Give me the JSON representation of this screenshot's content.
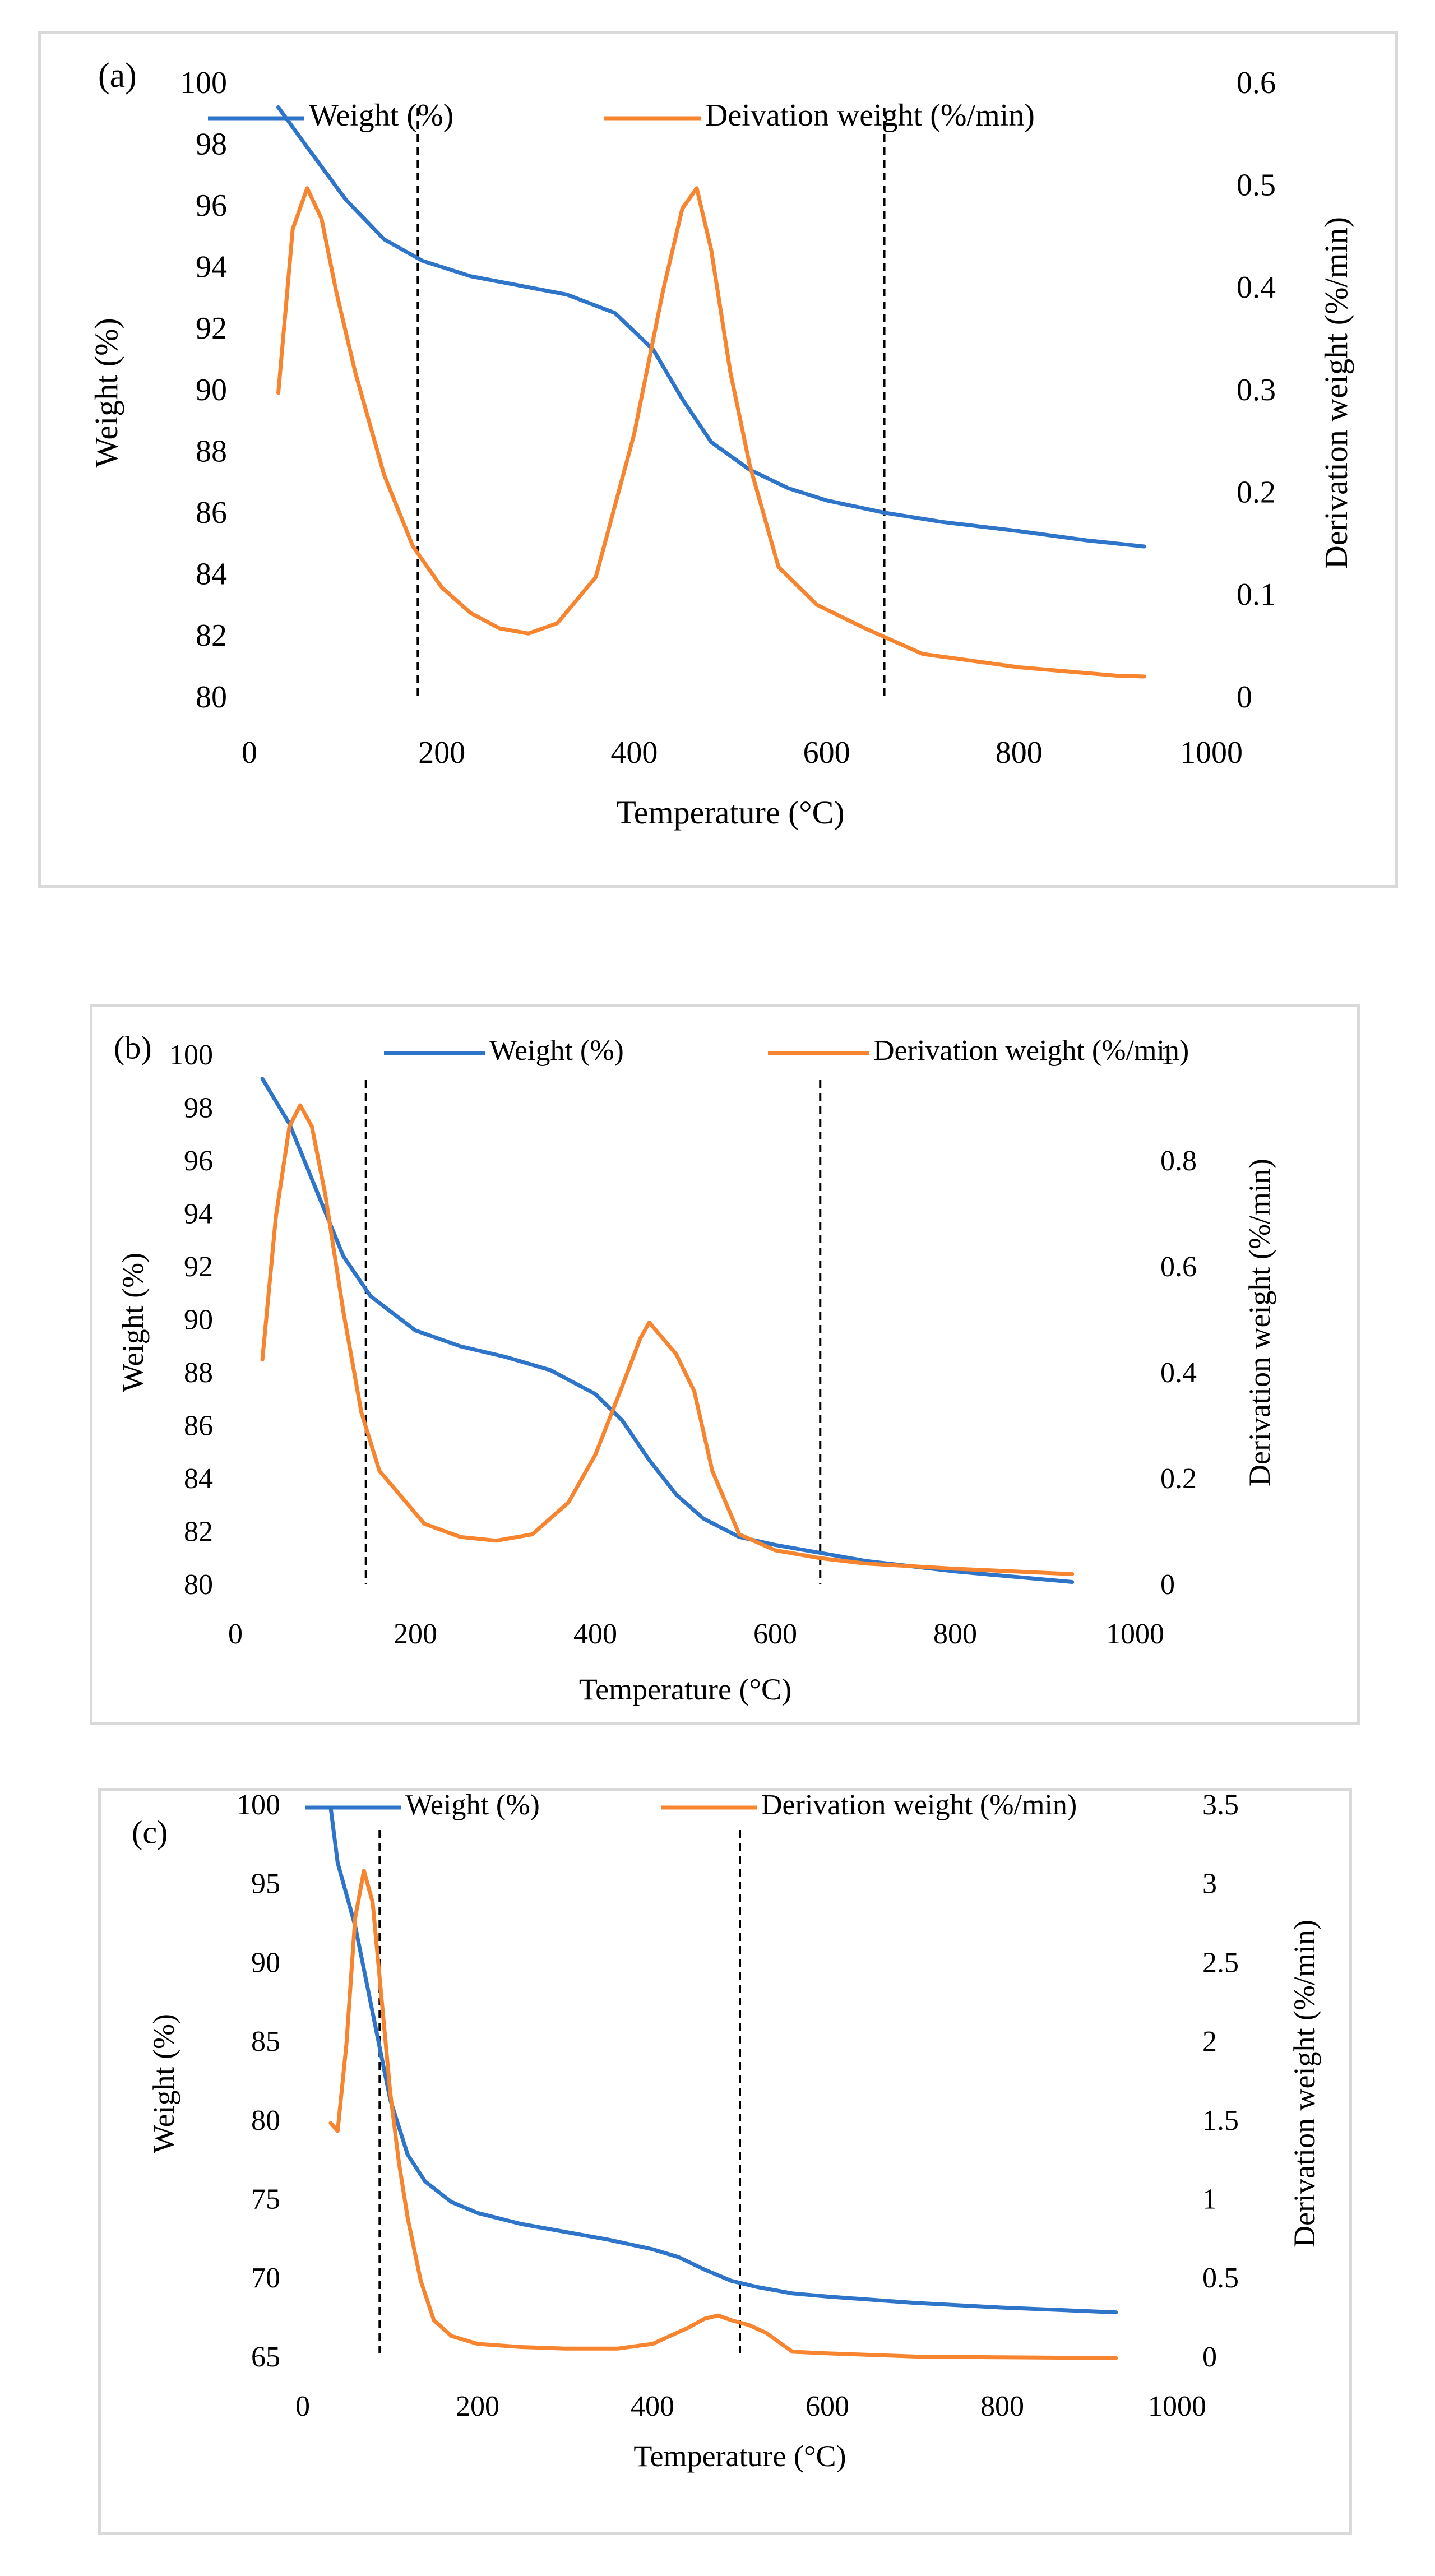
{
  "colors": {
    "weight": "#2E75C9",
    "derivative": "#F7842E",
    "axis": "#000000",
    "border": "#d9d9d9"
  },
  "chart_data": [
    {
      "type": "line",
      "panel_label": "(a)",
      "xlabel": "Temperature (°C)",
      "ylabel": "Weight (%)",
      "y2label": "Derivation weight (%/min)",
      "xlim": [
        0,
        1000
      ],
      "ylim": [
        80,
        100
      ],
      "y2lim": [
        0,
        0.6
      ],
      "x_ticks": [
        "0",
        "200",
        "400",
        "600",
        "800",
        "1000"
      ],
      "y_ticks": [
        "80",
        "82",
        "84",
        "86",
        "88",
        "90",
        "92",
        "94",
        "96",
        "98",
        "100"
      ],
      "y2_ticks": [
        "0",
        "0.1",
        "0.2",
        "0.3",
        "0.4",
        "0.5",
        "0.6"
      ],
      "vlines": [
        175,
        660
      ],
      "series": [
        {
          "name": "Weight (%)",
          "axis": "left",
          "x": [
            30,
            60,
            100,
            140,
            180,
            230,
            280,
            330,
            380,
            420,
            450,
            480,
            520,
            560,
            600,
            660,
            720,
            800,
            870,
            930
          ],
          "y": [
            99.3,
            98.0,
            96.3,
            95.0,
            94.3,
            93.8,
            93.5,
            93.2,
            92.6,
            91.4,
            89.8,
            88.4,
            87.5,
            86.9,
            86.5,
            86.1,
            85.8,
            85.5,
            85.2,
            85.0
          ]
        },
        {
          "name": "Deivation weight (%/min)",
          "axis": "right",
          "x": [
            30,
            45,
            60,
            75,
            90,
            110,
            140,
            170,
            200,
            230,
            260,
            290,
            320,
            360,
            400,
            430,
            450,
            465,
            480,
            500,
            520,
            550,
            590,
            640,
            700,
            800,
            900,
            930
          ],
          "y": [
            0.3,
            0.46,
            0.5,
            0.47,
            0.4,
            0.32,
            0.22,
            0.15,
            0.11,
            0.085,
            0.07,
            0.065,
            0.075,
            0.12,
            0.26,
            0.4,
            0.48,
            0.5,
            0.44,
            0.32,
            0.23,
            0.13,
            0.093,
            0.07,
            0.045,
            0.032,
            0.024,
            0.023
          ]
        }
      ]
    },
    {
      "type": "line",
      "panel_label": "(b)",
      "xlabel": "Temperature (°C)",
      "ylabel": "Weight (%)",
      "y2label": "Derivation weight (%/min)",
      "xlim": [
        0,
        1000
      ],
      "ylim": [
        80,
        100
      ],
      "y2lim": [
        0,
        1
      ],
      "x_ticks": [
        "0",
        "200",
        "400",
        "600",
        "800",
        "1000"
      ],
      "y_ticks": [
        "80",
        "82",
        "84",
        "86",
        "88",
        "90",
        "92",
        "94",
        "96",
        "98",
        "100"
      ],
      "y2_ticks": [
        "0",
        "0.2",
        "0.4",
        "0.6",
        "0.8",
        "1"
      ],
      "vlines": [
        145,
        650
      ],
      "series": [
        {
          "name": "Weight (%)",
          "axis": "left",
          "x": [
            30,
            60,
            90,
            120,
            150,
            200,
            250,
            300,
            350,
            400,
            430,
            460,
            490,
            520,
            560,
            600,
            650,
            700,
            800,
            930
          ],
          "y": [
            99.2,
            97.5,
            95.0,
            92.5,
            91.0,
            89.7,
            89.1,
            88.7,
            88.2,
            87.3,
            86.3,
            84.8,
            83.5,
            82.6,
            81.9,
            81.6,
            81.3,
            81.0,
            80.6,
            80.2
          ]
        },
        {
          "name": "Derivation weight (%/min)",
          "axis": "right",
          "x": [
            30,
            45,
            60,
            72,
            85,
            100,
            120,
            140,
            160,
            180,
            210,
            250,
            290,
            330,
            370,
            400,
            430,
            450,
            460,
            470,
            490,
            510,
            530,
            560,
            600,
            650,
            700,
            800,
            930
          ],
          "y": [
            0.43,
            0.7,
            0.87,
            0.91,
            0.87,
            0.74,
            0.52,
            0.33,
            0.22,
            0.18,
            0.12,
            0.095,
            0.088,
            0.1,
            0.16,
            0.25,
            0.38,
            0.47,
            0.5,
            0.48,
            0.44,
            0.37,
            0.22,
            0.1,
            0.07,
            0.055,
            0.045,
            0.035,
            0.025
          ]
        }
      ]
    },
    {
      "type": "line",
      "panel_label": "(c)",
      "xlabel": "Temperature (°C)",
      "ylabel": "Weight (%)",
      "y2label": "Derivation weight (%/min)",
      "xlim": [
        0,
        1000
      ],
      "ylim": [
        65,
        100
      ],
      "y2lim": [
        0,
        3.5
      ],
      "x_ticks": [
        "0",
        "200",
        "400",
        "600",
        "800",
        "1000"
      ],
      "y_ticks": [
        "65",
        "70",
        "75",
        "80",
        "85",
        "90",
        "95",
        "100"
      ],
      "y2_ticks": [
        "0",
        "0.5",
        "1",
        "1.5",
        "2",
        "2.5",
        "3",
        "3.5"
      ],
      "vlines": [
        88,
        500
      ],
      "series": [
        {
          "name": "Weight (%)",
          "axis": "left",
          "x": [
            32,
            40,
            60,
            80,
            100,
            120,
            140,
            170,
            200,
            250,
            300,
            350,
            400,
            430,
            460,
            490,
            520,
            560,
            600,
            700,
            800,
            930
          ],
          "y": [
            100,
            96.5,
            92.5,
            87.0,
            81.5,
            78.0,
            76.3,
            75.0,
            74.3,
            73.6,
            73.1,
            72.6,
            72.0,
            71.5,
            70.7,
            70.0,
            69.6,
            69.2,
            69.0,
            68.6,
            68.3,
            68.0
          ]
        },
        {
          "name": "Derivation weight (%/min)",
          "axis": "right",
          "x": [
            32,
            40,
            50,
            60,
            70,
            80,
            90,
            100,
            110,
            120,
            135,
            150,
            170,
            200,
            250,
            300,
            360,
            400,
            440,
            460,
            475,
            490,
            510,
            530,
            560,
            600,
            700,
            800,
            930
          ],
          "y": [
            1.5,
            1.45,
            2.0,
            2.8,
            3.1,
            2.9,
            2.3,
            1.7,
            1.25,
            0.9,
            0.5,
            0.25,
            0.15,
            0.1,
            0.08,
            0.07,
            0.07,
            0.1,
            0.2,
            0.26,
            0.28,
            0.25,
            0.22,
            0.17,
            0.05,
            0.04,
            0.02,
            0.015,
            0.01
          ]
        }
      ]
    }
  ]
}
